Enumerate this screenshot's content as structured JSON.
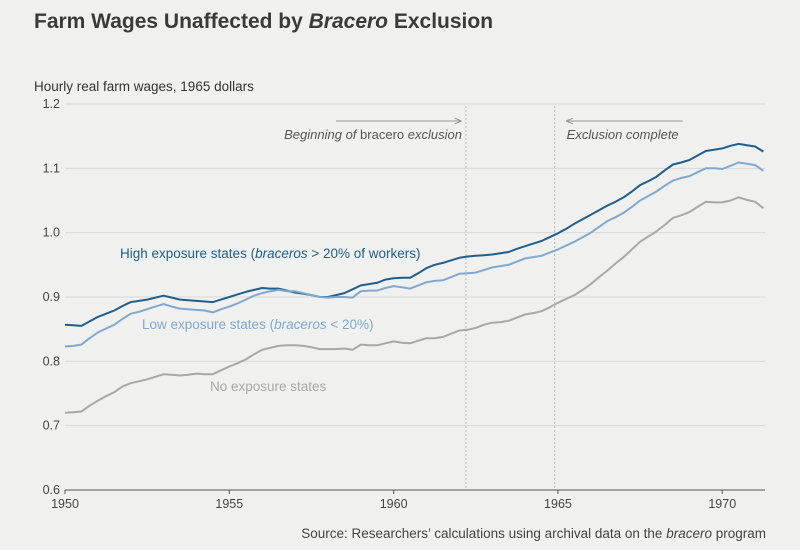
{
  "chart_data": {
    "type": "line",
    "title": {
      "before": "Farm Wages Unaffected by ",
      "italic": "Bracero",
      "after": " Exclusion"
    },
    "ylabel": "Hourly real farm wages, 1965 dollars",
    "xlabel": "",
    "xlim": [
      1950,
      1971.3
    ],
    "ylim": [
      0.6,
      1.2
    ],
    "x_ticks": [
      1950,
      1955,
      1960,
      1965,
      1970
    ],
    "y_ticks": [
      "0.6",
      "0.7",
      "0.8",
      "0.9",
      "1.0",
      "1.1",
      "1.2"
    ],
    "grid": true,
    "annotations": [
      {
        "parts": [
          [
            "Beginning of ",
            true
          ],
          [
            "bracero",
            false
          ],
          [
            " exclusion",
            true
          ]
        ],
        "x": 1962.2,
        "arrow": "right"
      },
      {
        "parts": [
          [
            "Exclusion complete",
            true
          ]
        ],
        "x": 1964.9,
        "arrow": "left"
      }
    ],
    "series": [
      {
        "name_parts": [
          [
            "High exposure states (",
            false
          ],
          [
            "braceros",
            true
          ],
          [
            " > 20% of workers)",
            false
          ]
        ],
        "color": "#1e5f8c",
        "values": [
          [
            1950.0,
            0.857
          ],
          [
            1950.25,
            0.856
          ],
          [
            1950.5,
            0.855
          ],
          [
            1950.75,
            0.862
          ],
          [
            1951.0,
            0.869
          ],
          [
            1951.25,
            0.874
          ],
          [
            1951.5,
            0.879
          ],
          [
            1951.75,
            0.886
          ],
          [
            1952.0,
            0.892
          ],
          [
            1952.25,
            0.894
          ],
          [
            1952.5,
            0.896
          ],
          [
            1952.75,
            0.899
          ],
          [
            1953.0,
            0.902
          ],
          [
            1953.25,
            0.899
          ],
          [
            1953.5,
            0.896
          ],
          [
            1953.75,
            0.895
          ],
          [
            1954.0,
            0.894
          ],
          [
            1954.25,
            0.893
          ],
          [
            1954.5,
            0.892
          ],
          [
            1954.75,
            0.896
          ],
          [
            1955.0,
            0.9
          ],
          [
            1955.25,
            0.904
          ],
          [
            1955.5,
            0.908
          ],
          [
            1955.75,
            0.911
          ],
          [
            1956.0,
            0.914
          ],
          [
            1956.25,
            0.913
          ],
          [
            1956.5,
            0.913
          ],
          [
            1956.75,
            0.91
          ],
          [
            1957.0,
            0.907
          ],
          [
            1957.25,
            0.905
          ],
          [
            1957.5,
            0.903
          ],
          [
            1957.75,
            0.9
          ],
          [
            1958.0,
            0.9
          ],
          [
            1958.25,
            0.903
          ],
          [
            1958.5,
            0.906
          ],
          [
            1958.75,
            0.912
          ],
          [
            1959.0,
            0.918
          ],
          [
            1959.25,
            0.92
          ],
          [
            1959.5,
            0.922
          ],
          [
            1959.75,
            0.927
          ],
          [
            1960.0,
            0.929
          ],
          [
            1960.25,
            0.93
          ],
          [
            1960.5,
            0.93
          ],
          [
            1960.75,
            0.937
          ],
          [
            1961.0,
            0.945
          ],
          [
            1961.25,
            0.95
          ],
          [
            1961.5,
            0.953
          ],
          [
            1961.75,
            0.957
          ],
          [
            1962.0,
            0.961
          ],
          [
            1962.25,
            0.963
          ],
          [
            1962.5,
            0.964
          ],
          [
            1962.75,
            0.965
          ],
          [
            1963.0,
            0.966
          ],
          [
            1963.25,
            0.968
          ],
          [
            1963.5,
            0.97
          ],
          [
            1963.75,
            0.975
          ],
          [
            1964.0,
            0.979
          ],
          [
            1964.25,
            0.983
          ],
          [
            1964.5,
            0.987
          ],
          [
            1964.75,
            0.993
          ],
          [
            1965.0,
            0.999
          ],
          [
            1965.25,
            1.006
          ],
          [
            1965.5,
            1.014
          ],
          [
            1965.75,
            1.021
          ],
          [
            1966.0,
            1.028
          ],
          [
            1966.25,
            1.035
          ],
          [
            1966.5,
            1.042
          ],
          [
            1966.75,
            1.048
          ],
          [
            1967.0,
            1.055
          ],
          [
            1967.25,
            1.064
          ],
          [
            1967.5,
            1.074
          ],
          [
            1967.75,
            1.08
          ],
          [
            1968.0,
            1.087
          ],
          [
            1968.25,
            1.097
          ],
          [
            1968.5,
            1.106
          ],
          [
            1968.75,
            1.109
          ],
          [
            1969.0,
            1.113
          ],
          [
            1969.25,
            1.12
          ],
          [
            1969.5,
            1.127
          ],
          [
            1969.75,
            1.129
          ],
          [
            1970.0,
            1.131
          ],
          [
            1970.25,
            1.135
          ],
          [
            1970.5,
            1.138
          ],
          [
            1970.75,
            1.136
          ],
          [
            1971.0,
            1.134
          ],
          [
            1971.25,
            1.126
          ]
        ]
      },
      {
        "name_parts": [
          [
            "Low exposure states (",
            false
          ],
          [
            "braceros",
            true
          ],
          [
            " < 20%)",
            false
          ]
        ],
        "color": "#7fa9d0",
        "values": [
          [
            1950.0,
            0.823
          ],
          [
            1950.25,
            0.824
          ],
          [
            1950.5,
            0.826
          ],
          [
            1950.75,
            0.836
          ],
          [
            1951.0,
            0.845
          ],
          [
            1951.25,
            0.851
          ],
          [
            1951.5,
            0.857
          ],
          [
            1951.75,
            0.866
          ],
          [
            1952.0,
            0.874
          ],
          [
            1952.25,
            0.877
          ],
          [
            1952.5,
            0.881
          ],
          [
            1952.75,
            0.885
          ],
          [
            1953.0,
            0.889
          ],
          [
            1953.25,
            0.885
          ],
          [
            1953.5,
            0.882
          ],
          [
            1953.75,
            0.881
          ],
          [
            1954.0,
            0.88
          ],
          [
            1954.25,
            0.879
          ],
          [
            1954.5,
            0.876
          ],
          [
            1954.75,
            0.881
          ],
          [
            1955.0,
            0.885
          ],
          [
            1955.25,
            0.89
          ],
          [
            1955.5,
            0.896
          ],
          [
            1955.75,
            0.902
          ],
          [
            1956.0,
            0.906
          ],
          [
            1956.25,
            0.909
          ],
          [
            1956.5,
            0.911
          ],
          [
            1956.75,
            0.909
          ],
          [
            1957.0,
            0.909
          ],
          [
            1957.25,
            0.906
          ],
          [
            1957.5,
            0.903
          ],
          [
            1957.75,
            0.9
          ],
          [
            1958.0,
            0.899
          ],
          [
            1958.25,
            0.9
          ],
          [
            1958.5,
            0.9
          ],
          [
            1958.75,
            0.899
          ],
          [
            1959.0,
            0.909
          ],
          [
            1959.25,
            0.91
          ],
          [
            1959.5,
            0.91
          ],
          [
            1959.75,
            0.914
          ],
          [
            1960.0,
            0.917
          ],
          [
            1960.25,
            0.915
          ],
          [
            1960.5,
            0.913
          ],
          [
            1960.75,
            0.918
          ],
          [
            1961.0,
            0.923
          ],
          [
            1961.25,
            0.925
          ],
          [
            1961.5,
            0.926
          ],
          [
            1961.75,
            0.931
          ],
          [
            1962.0,
            0.936
          ],
          [
            1962.25,
            0.937
          ],
          [
            1962.5,
            0.938
          ],
          [
            1962.75,
            0.942
          ],
          [
            1963.0,
            0.946
          ],
          [
            1963.25,
            0.948
          ],
          [
            1963.5,
            0.95
          ],
          [
            1963.75,
            0.955
          ],
          [
            1964.0,
            0.96
          ],
          [
            1964.25,
            0.962
          ],
          [
            1964.5,
            0.964
          ],
          [
            1964.75,
            0.969
          ],
          [
            1965.0,
            0.974
          ],
          [
            1965.25,
            0.98
          ],
          [
            1965.5,
            0.986
          ],
          [
            1965.75,
            0.993
          ],
          [
            1966.0,
            1.0
          ],
          [
            1966.25,
            1.009
          ],
          [
            1966.5,
            1.018
          ],
          [
            1966.75,
            1.024
          ],
          [
            1967.0,
            1.031
          ],
          [
            1967.25,
            1.04
          ],
          [
            1967.5,
            1.05
          ],
          [
            1967.75,
            1.057
          ],
          [
            1968.0,
            1.064
          ],
          [
            1968.25,
            1.073
          ],
          [
            1968.5,
            1.081
          ],
          [
            1968.75,
            1.085
          ],
          [
            1969.0,
            1.088
          ],
          [
            1969.25,
            1.094
          ],
          [
            1969.5,
            1.1
          ],
          [
            1969.75,
            1.1
          ],
          [
            1970.0,
            1.099
          ],
          [
            1970.25,
            1.104
          ],
          [
            1970.5,
            1.109
          ],
          [
            1970.75,
            1.107
          ],
          [
            1971.0,
            1.105
          ],
          [
            1971.25,
            1.096
          ]
        ]
      },
      {
        "name_parts": [
          [
            "No exposure states",
            false
          ]
        ],
        "color": "#a8a8a8",
        "values": [
          [
            1950.0,
            0.72
          ],
          [
            1950.25,
            0.721
          ],
          [
            1950.5,
            0.722
          ],
          [
            1950.75,
            0.731
          ],
          [
            1951.0,
            0.739
          ],
          [
            1951.25,
            0.746
          ],
          [
            1951.5,
            0.752
          ],
          [
            1951.75,
            0.761
          ],
          [
            1952.0,
            0.766
          ],
          [
            1952.25,
            0.769
          ],
          [
            1952.5,
            0.772
          ],
          [
            1952.75,
            0.776
          ],
          [
            1953.0,
            0.78
          ],
          [
            1953.25,
            0.779
          ],
          [
            1953.5,
            0.778
          ],
          [
            1953.75,
            0.779
          ],
          [
            1954.0,
            0.781
          ],
          [
            1954.25,
            0.78
          ],
          [
            1954.5,
            0.78
          ],
          [
            1954.75,
            0.786
          ],
          [
            1955.0,
            0.792
          ],
          [
            1955.25,
            0.797
          ],
          [
            1955.5,
            0.803
          ],
          [
            1955.75,
            0.811
          ],
          [
            1956.0,
            0.818
          ],
          [
            1956.25,
            0.821
          ],
          [
            1956.5,
            0.824
          ],
          [
            1956.75,
            0.825
          ],
          [
            1957.0,
            0.825
          ],
          [
            1957.25,
            0.824
          ],
          [
            1957.5,
            0.822
          ],
          [
            1957.75,
            0.819
          ],
          [
            1958.0,
            0.819
          ],
          [
            1958.25,
            0.819
          ],
          [
            1958.5,
            0.82
          ],
          [
            1958.75,
            0.818
          ],
          [
            1959.0,
            0.826
          ],
          [
            1959.25,
            0.825
          ],
          [
            1959.5,
            0.825
          ],
          [
            1959.75,
            0.828
          ],
          [
            1960.0,
            0.831
          ],
          [
            1960.25,
            0.829
          ],
          [
            1960.5,
            0.828
          ],
          [
            1960.75,
            0.832
          ],
          [
            1961.0,
            0.836
          ],
          [
            1961.25,
            0.836
          ],
          [
            1961.5,
            0.838
          ],
          [
            1961.75,
            0.843
          ],
          [
            1962.0,
            0.848
          ],
          [
            1962.25,
            0.849
          ],
          [
            1962.5,
            0.852
          ],
          [
            1962.75,
            0.857
          ],
          [
            1963.0,
            0.86
          ],
          [
            1963.25,
            0.861
          ],
          [
            1963.5,
            0.863
          ],
          [
            1963.75,
            0.868
          ],
          [
            1964.0,
            0.873
          ],
          [
            1964.25,
            0.875
          ],
          [
            1964.5,
            0.878
          ],
          [
            1964.75,
            0.884
          ],
          [
            1965.0,
            0.891
          ],
          [
            1965.25,
            0.897
          ],
          [
            1965.5,
            0.903
          ],
          [
            1965.75,
            0.911
          ],
          [
            1966.0,
            0.92
          ],
          [
            1966.25,
            0.931
          ],
          [
            1966.5,
            0.941
          ],
          [
            1966.75,
            0.952
          ],
          [
            1967.0,
            0.962
          ],
          [
            1967.25,
            0.974
          ],
          [
            1967.5,
            0.986
          ],
          [
            1967.75,
            0.994
          ],
          [
            1968.0,
            1.002
          ],
          [
            1968.25,
            1.012
          ],
          [
            1968.5,
            1.023
          ],
          [
            1968.75,
            1.027
          ],
          [
            1969.0,
            1.032
          ],
          [
            1969.25,
            1.04
          ],
          [
            1969.5,
            1.048
          ],
          [
            1969.75,
            1.047
          ],
          [
            1970.0,
            1.047
          ],
          [
            1970.25,
            1.05
          ],
          [
            1970.5,
            1.055
          ],
          [
            1970.75,
            1.051
          ],
          [
            1971.0,
            1.048
          ],
          [
            1971.25,
            1.038
          ]
        ]
      }
    ],
    "source": {
      "parts": [
        [
          "Source: Researchers’ calculations using archival data on the ",
          false
        ],
        [
          "bracero",
          true
        ],
        [
          " program",
          false
        ]
      ]
    }
  }
}
